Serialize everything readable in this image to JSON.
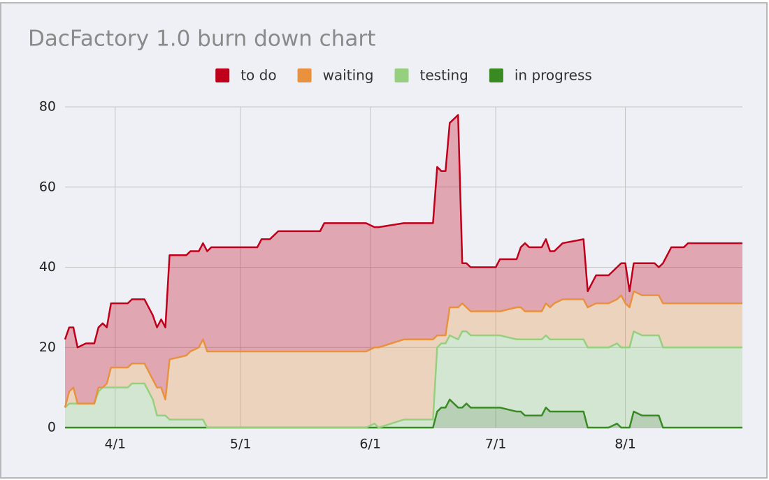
{
  "chart_data": {
    "type": "stacked_area",
    "title": "DacFactory 1.0 burn down chart",
    "x": [
      "3/20",
      "3/21",
      "3/22",
      "3/23",
      "3/25",
      "3/27",
      "3/28",
      "3/29",
      "3/30",
      "3/31",
      "4/4",
      "4/5",
      "4/8",
      "4/10",
      "4/11",
      "4/12",
      "4/13",
      "4/14",
      "4/18",
      "4/19",
      "4/21",
      "4/22",
      "4/23",
      "4/24",
      "5/5",
      "5/6",
      "5/8",
      "5/10",
      "5/20",
      "5/21",
      "5/31",
      "6/2",
      "6/3",
      "6/9",
      "6/16",
      "6/17",
      "6/18",
      "6/19",
      "6/20",
      "6/22",
      "6/23",
      "6/24",
      "6/25",
      "7/1",
      "7/2",
      "7/6",
      "7/7",
      "7/8",
      "7/9",
      "7/12",
      "7/13",
      "7/14",
      "7/15",
      "7/17",
      "7/22",
      "7/23",
      "7/25",
      "7/28",
      "7/30",
      "7/31",
      "8/1",
      "8/2",
      "8/3",
      "8/5",
      "8/8",
      "8/9",
      "8/10",
      "8/12",
      "8/15",
      "8/16",
      "8/29"
    ],
    "xlim": [
      "3/20",
      "8/29"
    ],
    "xticks": [
      "4/1",
      "5/1",
      "6/1",
      "7/1",
      "8/1"
    ],
    "ylim": [
      0,
      80
    ],
    "yticks": [
      0,
      20,
      40,
      60,
      80
    ],
    "grid": true,
    "legend": "top",
    "series": [
      {
        "name": "to do",
        "color": "#c0001a",
        "values": [
          17,
          16,
          15,
          14,
          15,
          15,
          15,
          16,
          14,
          16,
          16,
          16,
          16,
          16,
          15,
          17,
          18,
          26,
          25,
          25,
          24,
          24,
          25,
          26,
          26,
          28,
          28,
          30,
          30,
          32,
          32,
          30,
          30,
          29,
          29,
          42,
          41,
          41,
          46,
          48,
          10,
          11,
          11,
          11,
          13,
          12,
          15,
          17,
          16,
          16,
          16,
          14,
          13,
          14,
          15,
          4,
          7,
          7,
          8,
          8,
          10,
          4,
          7,
          8,
          8,
          7,
          10,
          14,
          14,
          15,
          15
        ]
      },
      {
        "name": "waiting",
        "color": "#e8913f",
        "values": [
          0,
          3,
          4,
          0,
          0,
          0,
          1,
          0,
          1,
          5,
          5,
          5,
          5,
          5,
          7,
          7,
          4,
          15,
          16,
          17,
          18,
          20,
          19,
          19,
          19,
          19,
          19,
          19,
          19,
          19,
          19,
          19,
          20,
          20,
          20,
          3,
          2,
          2,
          7,
          8,
          7,
          6,
          6,
          6,
          6,
          8,
          8,
          7,
          7,
          7,
          8,
          8,
          9,
          10,
          10,
          10,
          11,
          11,
          11,
          13,
          11,
          10,
          10,
          10,
          10,
          10,
          11,
          11,
          11,
          11,
          11
        ]
      },
      {
        "name": "testing",
        "color": "#96d07f",
        "values": [
          5,
          6,
          6,
          6,
          6,
          6,
          9,
          10,
          10,
          10,
          10,
          11,
          11,
          7,
          3,
          3,
          3,
          2,
          2,
          2,
          2,
          2,
          0,
          0,
          0,
          0,
          0,
          0,
          0,
          0,
          0,
          1,
          0,
          2,
          2,
          16,
          16,
          16,
          16,
          17,
          19,
          18,
          18,
          18,
          18,
          18,
          18,
          19,
          19,
          19,
          18,
          18,
          18,
          18,
          18,
          20,
          20,
          20,
          20,
          20,
          20,
          20,
          20,
          20,
          20,
          20,
          20,
          20,
          20,
          20,
          20
        ]
      },
      {
        "name": "in progress",
        "color": "#3a8a24",
        "values": [
          0,
          0,
          0,
          0,
          0,
          0,
          0,
          0,
          0,
          0,
          0,
          0,
          0,
          0,
          0,
          0,
          0,
          0,
          0,
          0,
          0,
          0,
          0,
          0,
          0,
          0,
          0,
          0,
          0,
          0,
          0,
          0,
          0,
          0,
          0,
          4,
          5,
          5,
          7,
          5,
          5,
          6,
          5,
          5,
          5,
          4,
          4,
          3,
          3,
          3,
          5,
          4,
          4,
          4,
          4,
          0,
          0,
          0,
          1,
          0,
          0,
          0,
          4,
          3,
          3,
          3,
          0,
          0,
          0,
          0,
          0
        ]
      }
    ]
  }
}
